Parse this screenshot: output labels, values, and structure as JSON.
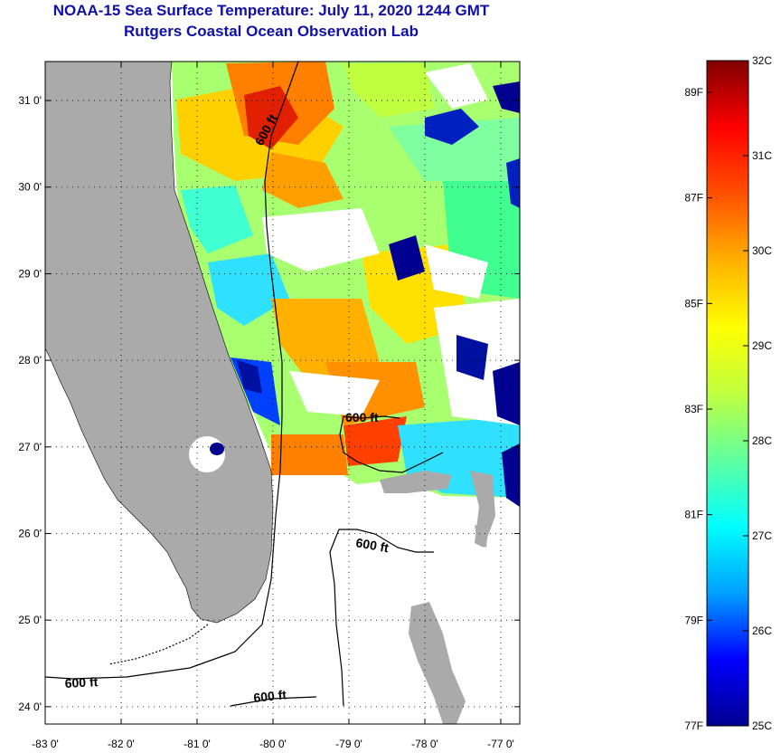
{
  "title": {
    "line1": "NOAA-15 Sea Surface Temperature:  July 11, 2020 1244 GMT",
    "line2": "Rutgers Coastal Ocean Observation Lab"
  },
  "map": {
    "lon_ticks": [
      {
        "value": -83,
        "label": "-83 0'"
      },
      {
        "value": -82,
        "label": "-82 0'"
      },
      {
        "value": -81,
        "label": "-81 0'"
      },
      {
        "value": -80,
        "label": "-80 0'"
      },
      {
        "value": -79,
        "label": "-79 0'"
      },
      {
        "value": -78,
        "label": "-78 0'"
      },
      {
        "value": -77,
        "label": "-77 0'"
      }
    ],
    "lat_ticks": [
      {
        "value": 31,
        "label": "31 0'"
      },
      {
        "value": 30,
        "label": "30 0'"
      },
      {
        "value": 29,
        "label": "29 0'"
      },
      {
        "value": 28,
        "label": "28 0'"
      },
      {
        "value": 27,
        "label": "27 0'"
      },
      {
        "value": 26,
        "label": "26 0'"
      },
      {
        "value": 25,
        "label": "25 0'"
      },
      {
        "value": 24,
        "label": "24 0'"
      }
    ],
    "contour_labels": [
      "600 ft",
      "600 ft",
      "600 ft",
      "600 ft",
      "600 ft"
    ],
    "colors": {
      "land": "#aaaaaa",
      "no_data": "#ffffff",
      "contour": "#000000"
    }
  },
  "colorbar": {
    "min_c": 25,
    "max_c": 32,
    "celsius_labels": [
      "32C",
      "31C",
      "30C",
      "29C",
      "28C",
      "27C",
      "26C",
      "25C"
    ],
    "fahrenheit_labels": [
      "89F",
      "87F",
      "85F",
      "83F",
      "81F",
      "79F",
      "77F"
    ],
    "colormap": [
      "#00008f",
      "#0000ff",
      "#00a0ff",
      "#00ffff",
      "#60ff9f",
      "#c0ff40",
      "#ffff00",
      "#ffb000",
      "#ff5000",
      "#ff0000",
      "#800000"
    ]
  }
}
